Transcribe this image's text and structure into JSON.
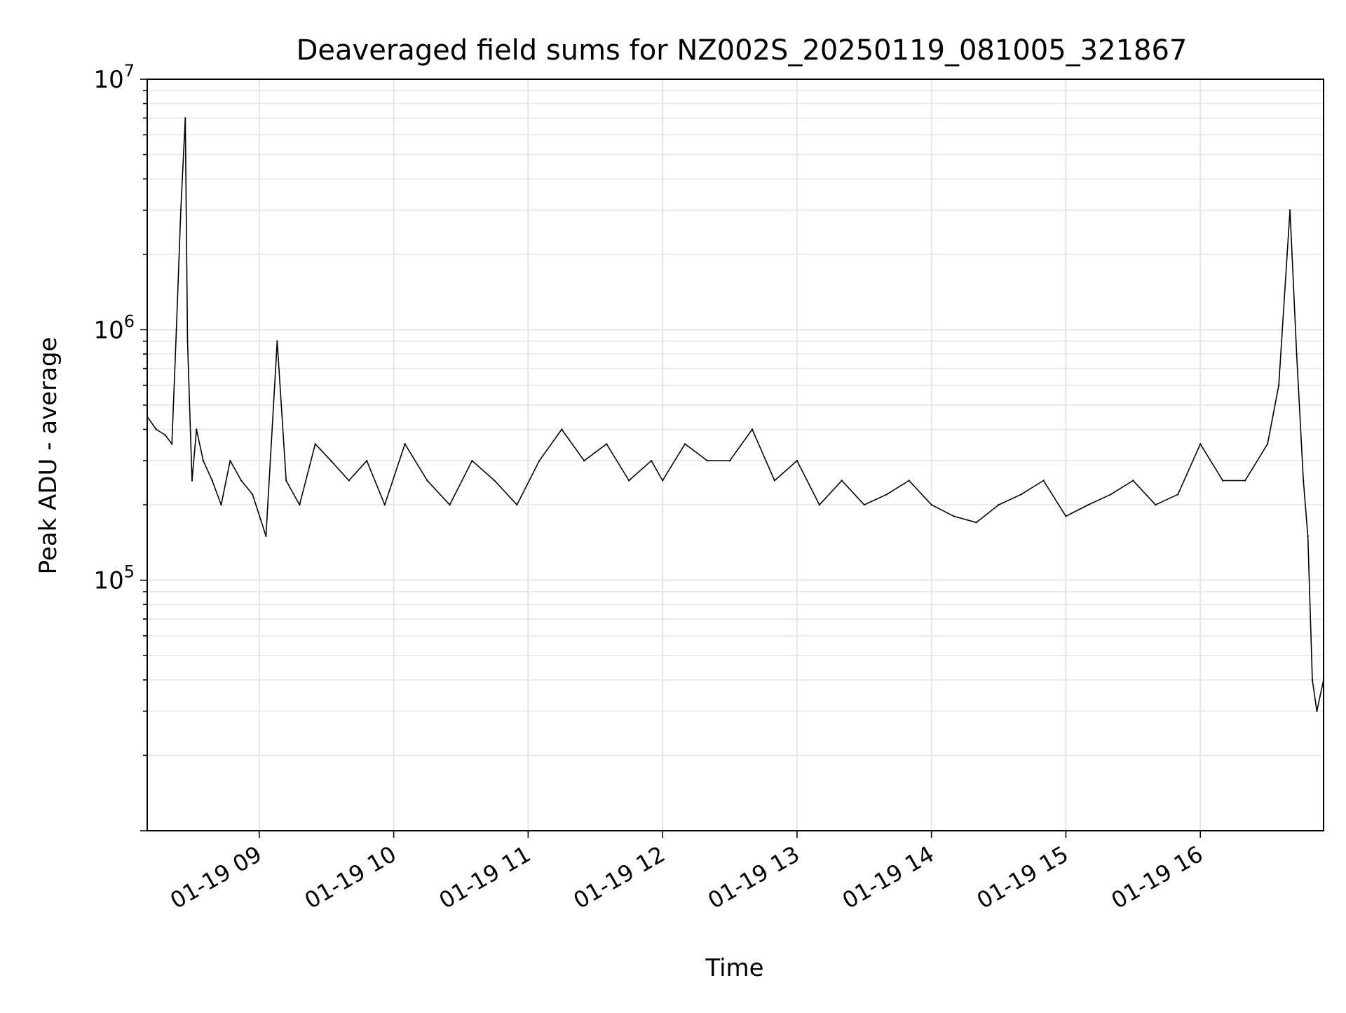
{
  "chart_data": {
    "type": "line",
    "title": "Deaveraged field sums for NZ002S_20250119_081005_321867",
    "xlabel": "Time",
    "ylabel": "Peak ADU - average",
    "x_range": [
      "2025-01-19 08:10",
      "2025-01-19 16:55"
    ],
    "ylim": [
      10000,
      10000000
    ],
    "yscale": "log",
    "grid": true,
    "x_ticks": [
      {
        "value": "2025-01-19 09:00",
        "label": "01-19 09"
      },
      {
        "value": "2025-01-19 10:00",
        "label": "01-19 10"
      },
      {
        "value": "2025-01-19 11:00",
        "label": "01-19 11"
      },
      {
        "value": "2025-01-19 12:00",
        "label": "01-19 12"
      },
      {
        "value": "2025-01-19 13:00",
        "label": "01-19 13"
      },
      {
        "value": "2025-01-19 14:00",
        "label": "01-19 14"
      },
      {
        "value": "2025-01-19 15:00",
        "label": "01-19 15"
      },
      {
        "value": "2025-01-19 16:00",
        "label": "01-19 16"
      }
    ],
    "y_ticks": [
      {
        "value": 100000,
        "base": "10",
        "exp": "5"
      },
      {
        "value": 1000000,
        "base": "10",
        "exp": "6"
      },
      {
        "value": 10000000,
        "base": "10",
        "exp": "7"
      }
    ],
    "series": [
      {
        "color": "#000000",
        "x": [
          "2025-01-19 08:10",
          "2025-01-19 08:14",
          "2025-01-19 08:18",
          "2025-01-19 08:21",
          "2025-01-19 08:23",
          "2025-01-19 08:25",
          "2025-01-19 08:27",
          "2025-01-19 08:28",
          "2025-01-19 08:30",
          "2025-01-19 08:32",
          "2025-01-19 08:35",
          "2025-01-19 08:39",
          "2025-01-19 08:43",
          "2025-01-19 08:47",
          "2025-01-19 08:52",
          "2025-01-19 08:57",
          "2025-01-19 09:03",
          "2025-01-19 09:08",
          "2025-01-19 09:12",
          "2025-01-19 09:18",
          "2025-01-19 09:25",
          "2025-01-19 09:32",
          "2025-01-19 09:40",
          "2025-01-19 09:48",
          "2025-01-19 09:56",
          "2025-01-19 10:05",
          "2025-01-19 10:15",
          "2025-01-19 10:25",
          "2025-01-19 10:35",
          "2025-01-19 10:45",
          "2025-01-19 10:55",
          "2025-01-19 11:05",
          "2025-01-19 11:15",
          "2025-01-19 11:25",
          "2025-01-19 11:35",
          "2025-01-19 11:45",
          "2025-01-19 11:55",
          "2025-01-19 12:00",
          "2025-01-19 12:10",
          "2025-01-19 12:20",
          "2025-01-19 12:30",
          "2025-01-19 12:40",
          "2025-01-19 12:50",
          "2025-01-19 13:00",
          "2025-01-19 13:10",
          "2025-01-19 13:20",
          "2025-01-19 13:30",
          "2025-01-19 13:40",
          "2025-01-19 13:50",
          "2025-01-19 14:00",
          "2025-01-19 14:10",
          "2025-01-19 14:20",
          "2025-01-19 14:30",
          "2025-01-19 14:40",
          "2025-01-19 14:50",
          "2025-01-19 15:00",
          "2025-01-19 15:10",
          "2025-01-19 15:20",
          "2025-01-19 15:30",
          "2025-01-19 15:40",
          "2025-01-19 15:50",
          "2025-01-19 16:00",
          "2025-01-19 16:10",
          "2025-01-19 16:20",
          "2025-01-19 16:30",
          "2025-01-19 16:35",
          "2025-01-19 16:40",
          "2025-01-19 16:43",
          "2025-01-19 16:46",
          "2025-01-19 16:48",
          "2025-01-19 16:50",
          "2025-01-19 16:52",
          "2025-01-19 16:55"
        ],
        "y": [
          450000,
          400000,
          380000,
          350000,
          1000000,
          3000000,
          7000000,
          900000,
          250000,
          400000,
          300000,
          250000,
          200000,
          300000,
          250000,
          220000,
          150000,
          900000,
          250000,
          200000,
          350000,
          300000,
          250000,
          300000,
          200000,
          350000,
          250000,
          200000,
          300000,
          250000,
          200000,
          300000,
          400000,
          300000,
          350000,
          250000,
          300000,
          250000,
          350000,
          300000,
          300000,
          400000,
          250000,
          300000,
          200000,
          250000,
          200000,
          220000,
          250000,
          200000,
          180000,
          170000,
          200000,
          220000,
          250000,
          180000,
          200000,
          220000,
          250000,
          200000,
          220000,
          350000,
          250000,
          250000,
          350000,
          600000,
          3000000,
          800000,
          250000,
          150000,
          40000,
          30000,
          40000
        ]
      }
    ]
  }
}
